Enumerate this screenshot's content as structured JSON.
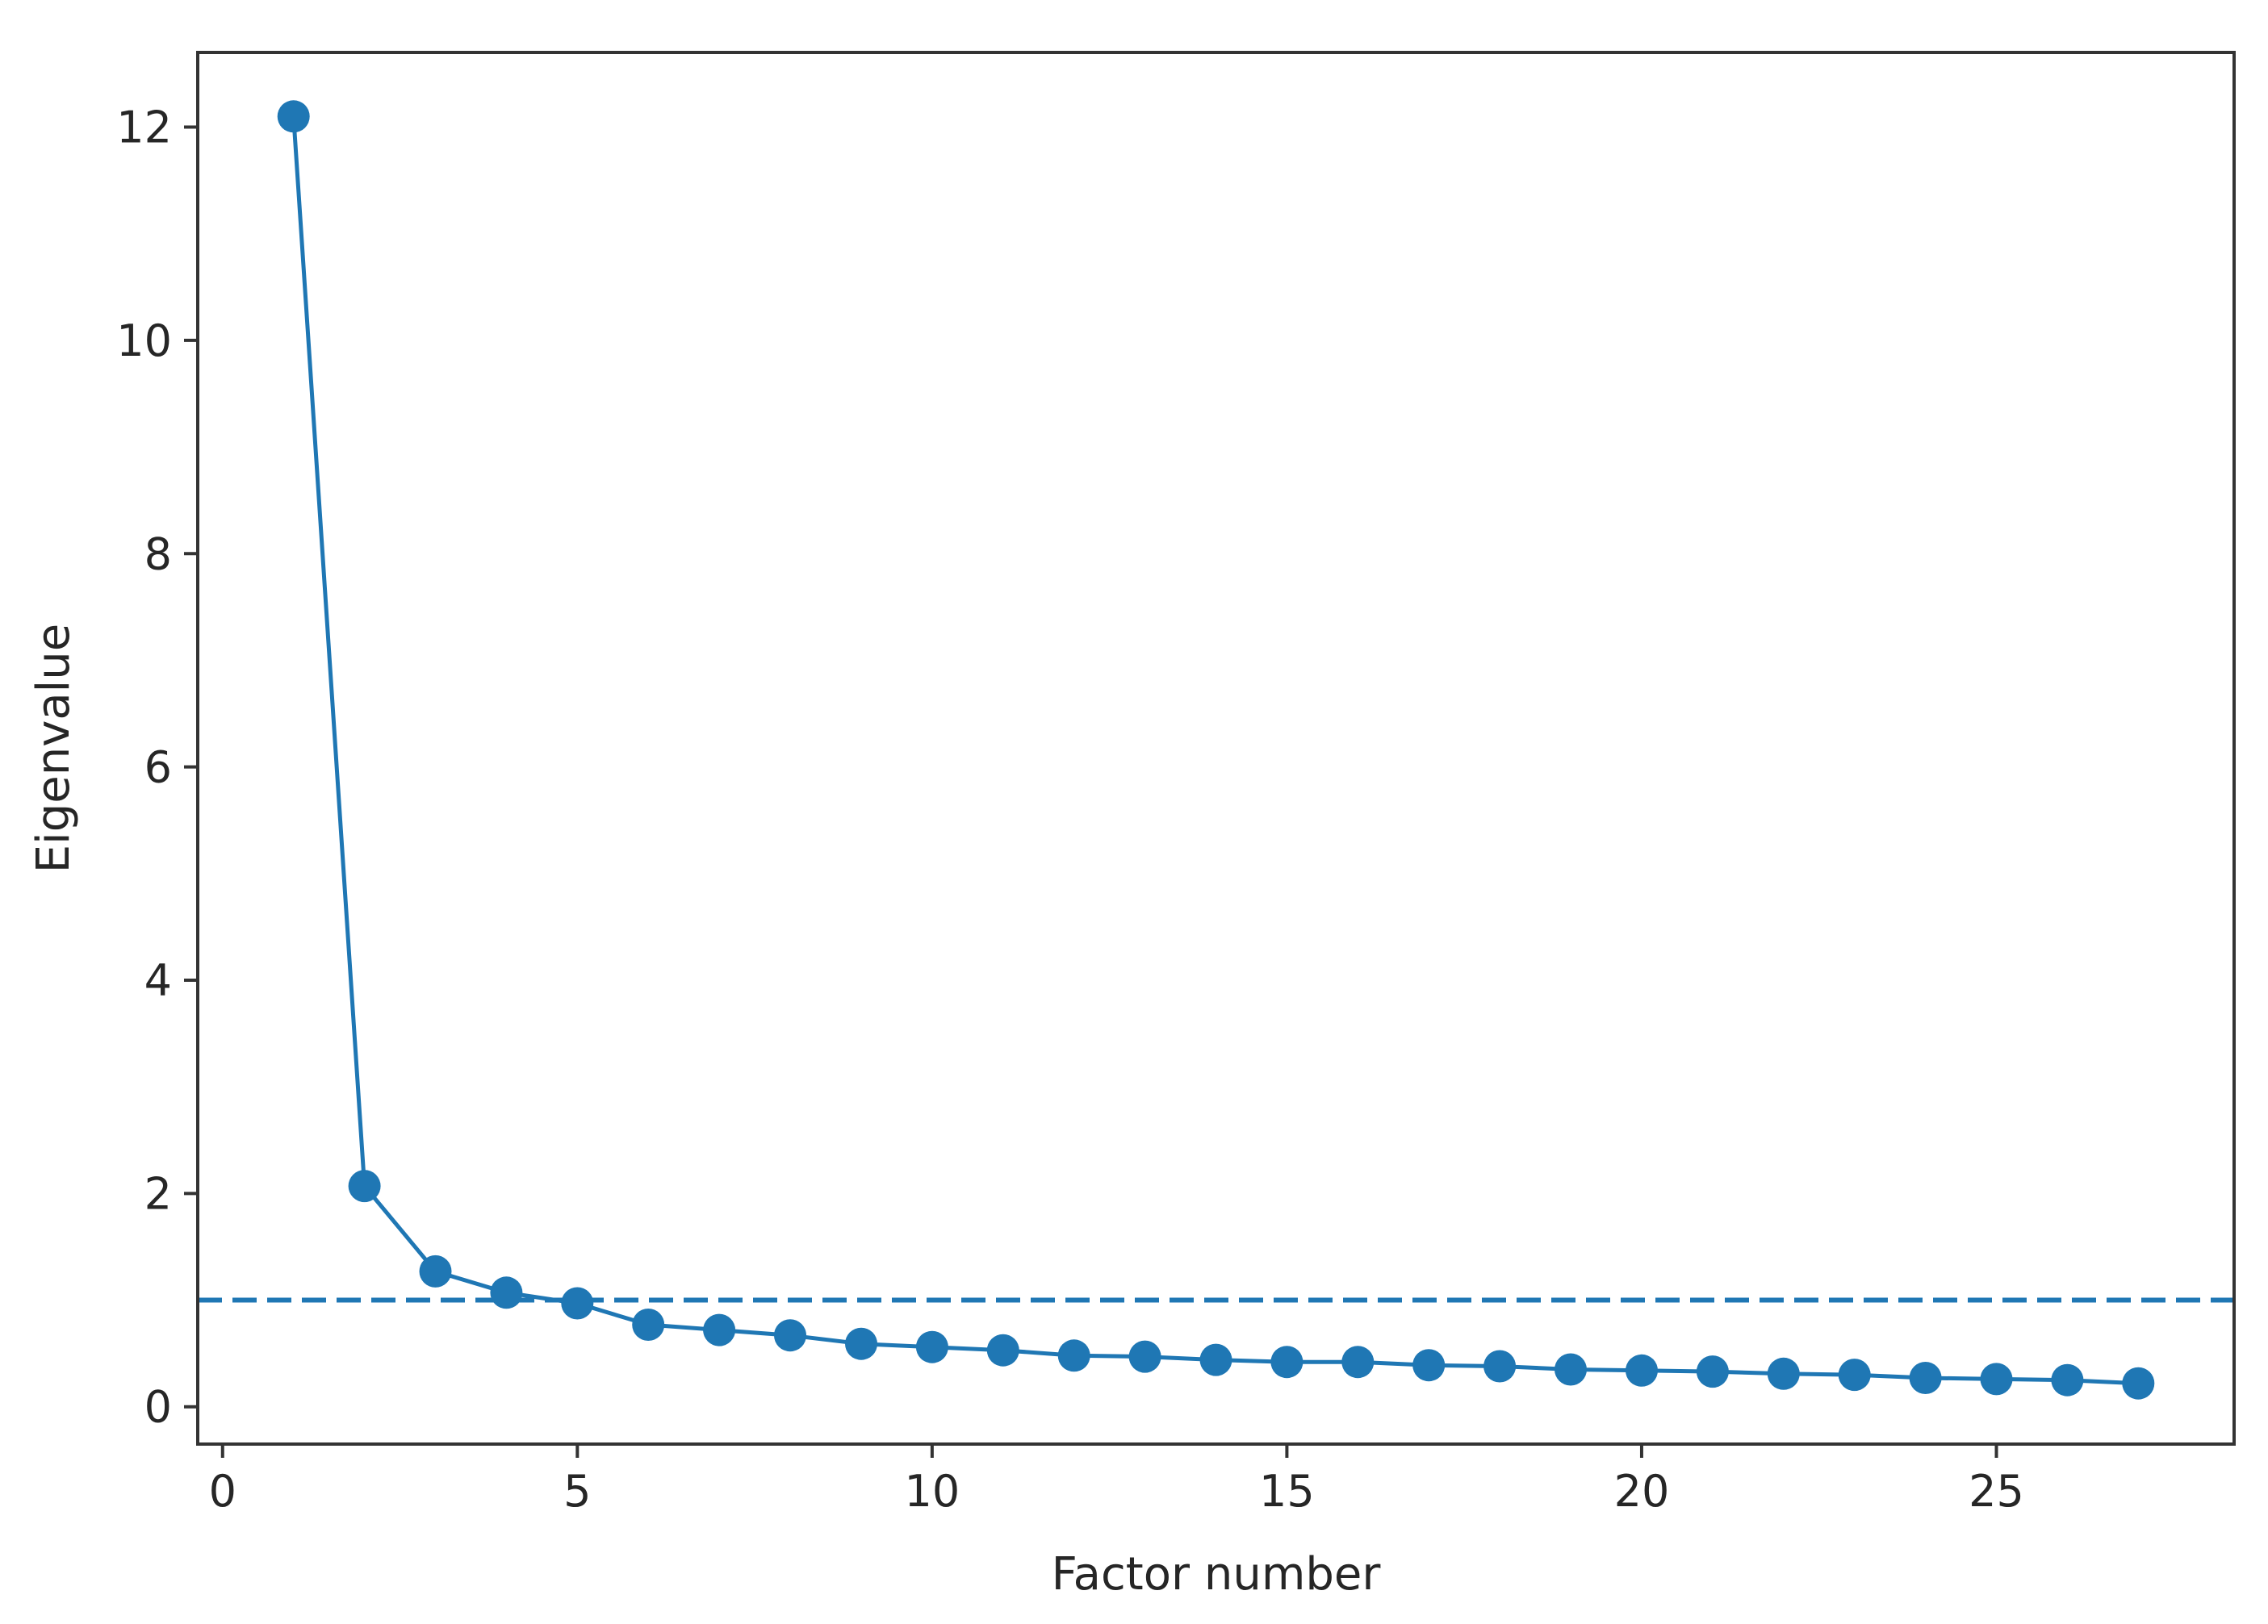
{
  "chart_data": {
    "type": "line",
    "title": "",
    "xlabel": "Factor number",
    "ylabel": "Eigenvalue",
    "xlim": [
      -0.35,
      28.35
    ],
    "ylim": [
      -0.35,
      12.7
    ],
    "xticks": [
      0,
      5,
      10,
      15,
      20,
      25
    ],
    "yticks": [
      0,
      2,
      4,
      6,
      8,
      10,
      12
    ],
    "grid": false,
    "series": [
      {
        "marker": "circle",
        "color": "#1f77b4",
        "x": [
          1,
          2,
          3,
          4,
          5,
          6,
          7,
          8,
          9,
          10,
          11,
          12,
          13,
          14,
          15,
          16,
          17,
          18,
          19,
          20,
          21,
          22,
          23,
          24,
          25,
          26,
          27
        ],
        "y": [
          12.1,
          2.07,
          1.27,
          1.07,
          0.97,
          0.77,
          0.72,
          0.67,
          0.59,
          0.56,
          0.53,
          0.48,
          0.47,
          0.44,
          0.42,
          0.42,
          0.39,
          0.38,
          0.35,
          0.34,
          0.33,
          0.31,
          0.3,
          0.27,
          0.26,
          0.25,
          0.22
        ]
      }
    ],
    "reference_line": {
      "y": 1,
      "style": "dashed",
      "color": "#1f77b4"
    }
  }
}
